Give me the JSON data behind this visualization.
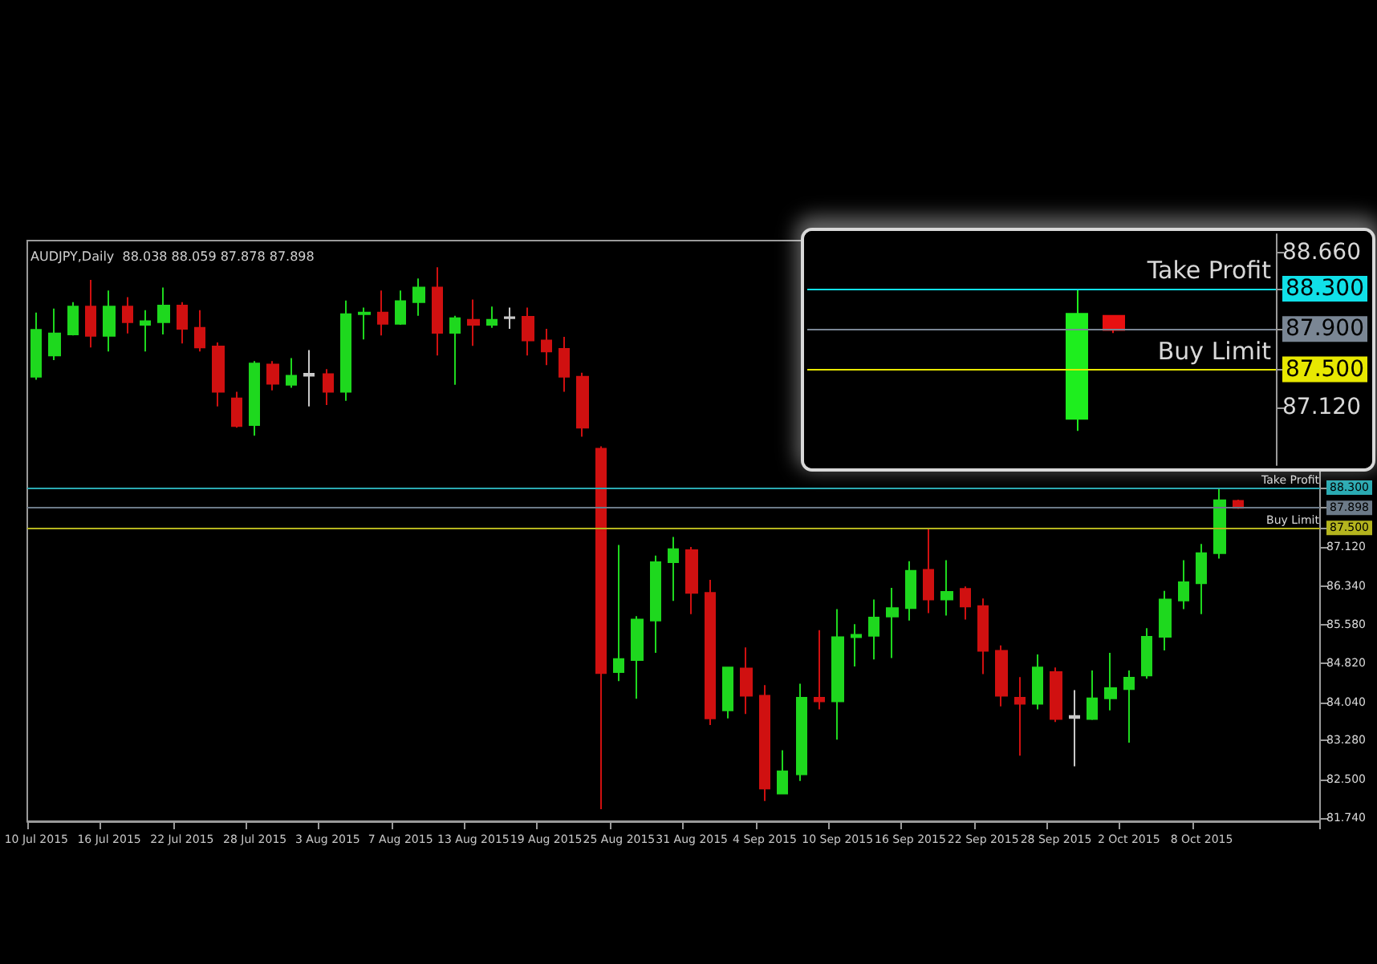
{
  "chart_data": [
    {
      "type": "candlestick",
      "title": "AUDJPY,Daily  88.038 88.059 87.878 87.898",
      "categories": [
        "10 Jul 2015",
        null,
        null,
        null,
        "16 Jul 2015",
        null,
        null,
        null,
        "22 Jul 2015",
        null,
        null,
        null,
        "28 Jul 2015",
        null,
        null,
        null,
        "3 Aug 2015",
        null,
        null,
        null,
        "7 Aug 2015",
        null,
        null,
        null,
        "13 Aug 2015",
        null,
        null,
        null,
        "19 Aug 2015",
        null,
        null,
        null,
        "25 Aug 2015",
        null,
        null,
        null,
        "31 Aug 2015",
        null,
        null,
        null,
        "4 Sep 2015",
        null,
        null,
        null,
        "10 Sep 2015",
        null,
        null,
        null,
        "16 Sep 2015",
        null,
        null,
        null,
        "22 Sep 2015",
        null,
        null,
        null,
        "28 Sep 2015",
        null,
        null,
        null,
        "2 Oct 2015",
        null,
        null,
        null,
        "8 Oct 2015",
        null,
        null,
        null,
        null,
        null,
        null
      ],
      "ohlc": [
        [
          90.5,
          91.77,
          90.44,
          91.43
        ],
        [
          90.92,
          91.85,
          90.83,
          91.36
        ],
        [
          91.34,
          91.98,
          91.32,
          91.89
        ],
        [
          91.89,
          92.42,
          91.08,
          91.31
        ],
        [
          91.31,
          92.21,
          91.0,
          91.89
        ],
        [
          91.89,
          92.08,
          91.36,
          91.58
        ],
        [
          91.53,
          91.82,
          91.0,
          91.6
        ],
        [
          91.58,
          92.27,
          91.34,
          91.91
        ],
        [
          91.91,
          91.98,
          91.16,
          91.45
        ],
        [
          91.47,
          91.82,
          91.0,
          91.08
        ],
        [
          91.1,
          91.18,
          89.91,
          90.2
        ],
        [
          90.07,
          90.2,
          89.49,
          89.52
        ],
        [
          89.54,
          90.81,
          89.33,
          90.76
        ],
        [
          90.74,
          90.81,
          90.23,
          90.36
        ],
        [
          90.34,
          90.87,
          90.28,
          90.52
        ],
        [
          90.52,
          91.03,
          89.91,
          90.56
        ],
        [
          90.55,
          90.65,
          89.94,
          90.2
        ],
        [
          90.2,
          92.01,
          90.02,
          91.74
        ],
        [
          91.74,
          91.87,
          91.24,
          91.77
        ],
        [
          91.77,
          92.21,
          91.32,
          91.55
        ],
        [
          91.55,
          92.21,
          91.53,
          92.0
        ],
        [
          91.98,
          92.45,
          91.71,
          92.27
        ],
        [
          92.27,
          92.67,
          90.92,
          91.37
        ],
        [
          91.37,
          91.71,
          90.34,
          91.66
        ],
        [
          91.63,
          92.03,
          91.11,
          91.53
        ],
        [
          91.53,
          91.89,
          91.47,
          91.63
        ],
        [
          91.66,
          91.87,
          91.45,
          91.68
        ],
        [
          91.69,
          91.87,
          90.92,
          91.22
        ],
        [
          91.22,
          91.45,
          90.73,
          91.0
        ],
        [
          91.05,
          91.29,
          90.2,
          90.5
        ],
        [
          90.5,
          90.58,
          89.31,
          89.49
        ],
        [
          89.07,
          89.12,
          81.92,
          84.62
        ],
        [
          84.64,
          87.16,
          84.46,
          84.9
        ],
        [
          84.88,
          85.75,
          84.11,
          85.68
        ],
        [
          85.66,
          86.95,
          85.02,
          86.82
        ],
        [
          86.82,
          87.32,
          86.05,
          87.08
        ],
        [
          87.06,
          87.12,
          85.79,
          86.21
        ],
        [
          86.21,
          86.47,
          83.59,
          83.72
        ],
        [
          83.88,
          84.73,
          83.72,
          84.73
        ],
        [
          84.71,
          85.13,
          83.81,
          84.17
        ],
        [
          84.17,
          84.38,
          82.08,
          82.33
        ],
        [
          82.23,
          83.09,
          82.23,
          82.67
        ],
        [
          82.61,
          84.41,
          82.48,
          84.13
        ],
        [
          84.13,
          85.47,
          83.9,
          84.06
        ],
        [
          84.06,
          85.89,
          83.3,
          85.33
        ],
        [
          85.33,
          85.59,
          84.75,
          85.38
        ],
        [
          85.36,
          86.08,
          84.89,
          85.72
        ],
        [
          85.74,
          86.31,
          84.92,
          85.91
        ],
        [
          85.91,
          86.84,
          85.66,
          86.65
        ],
        [
          86.67,
          87.5,
          85.81,
          86.08
        ],
        [
          86.08,
          86.86,
          85.76,
          86.23
        ],
        [
          86.29,
          86.34,
          85.68,
          85.94
        ],
        [
          85.95,
          86.1,
          84.6,
          85.06
        ],
        [
          85.06,
          85.17,
          83.96,
          84.17
        ],
        [
          84.13,
          84.54,
          82.98,
          84.01
        ],
        [
          84.01,
          84.99,
          83.9,
          84.73
        ],
        [
          84.64,
          84.73,
          83.65,
          83.71
        ],
        [
          83.77,
          84.28,
          82.77,
          83.73
        ],
        [
          83.71,
          84.67,
          83.69,
          84.12
        ],
        [
          84.12,
          85.02,
          83.88,
          84.32
        ],
        [
          84.3,
          84.67,
          83.24,
          84.53
        ],
        [
          84.57,
          85.51,
          84.51,
          85.34
        ],
        [
          85.34,
          86.25,
          85.07,
          86.08
        ],
        [
          86.06,
          86.86,
          85.89,
          86.42
        ],
        [
          86.4,
          87.18,
          85.79,
          87.0
        ],
        [
          87.0,
          88.3,
          86.89,
          88.05
        ],
        [
          88.038,
          88.059,
          87.878,
          87.898
        ],
        null,
        null,
        null,
        null
      ],
      "colors": [
        "#1ed81e",
        "#1ed81e",
        "#1ed81e",
        "#d01010",
        "#1ed81e",
        "#d01010",
        "#1ed81e",
        "#1ed81e",
        "#d01010",
        "#d01010",
        "#d01010",
        "#d01010",
        "#1ed81e",
        "#d01010",
        "#1ed81e",
        "#c8c8c8",
        "#d01010",
        "#1ed81e",
        "#1ed81e",
        "#d01010",
        "#1ed81e",
        "#1ed81e",
        "#d01010",
        "#1ed81e",
        "#d01010",
        "#1ed81e",
        "#c8c8c8",
        "#d01010",
        "#d01010",
        "#d01010",
        "#d01010",
        "#d01010",
        "#1ed81e",
        "#1ed81e",
        "#1ed81e",
        "#1ed81e",
        "#d01010",
        "#d01010",
        "#1ed81e",
        "#d01010",
        "#d01010",
        "#1ed81e",
        "#1ed81e",
        "#d01010",
        "#1ed81e",
        "#1ed81e",
        "#1ed81e",
        "#1ed81e",
        "#1ed81e",
        "#d01010",
        "#1ed81e",
        "#d01010",
        "#d01010",
        "#d01010",
        "#d01010",
        "#1ed81e",
        "#d01010",
        "#c8c8c8",
        "#1ed81e",
        "#1ed81e",
        "#1ed81e",
        "#1ed81e",
        "#1ed81e",
        "#1ed81e",
        "#1ed81e",
        "#1ed81e",
        "#d01010",
        null,
        null,
        null,
        null
      ],
      "ylim": [
        81.68,
        93.2
      ],
      "yticks": [
        {
          "value": 88.3,
          "label": "88.300"
        },
        {
          "value": 87.898,
          "label": "87.898"
        },
        {
          "value": 87.5,
          "label": "87.500"
        },
        {
          "value": 87.12,
          "label": "87.120"
        },
        {
          "value": 86.34,
          "label": "86.340"
        },
        {
          "value": 85.58,
          "label": "85.580"
        },
        {
          "value": 84.82,
          "label": "84.820"
        },
        {
          "value": 84.04,
          "label": "84.040"
        },
        {
          "value": 83.28,
          "label": "83.280"
        },
        {
          "value": 82.5,
          "label": "82.500"
        },
        {
          "value": 81.74,
          "label": "81.740"
        }
      ],
      "ref_lines": [
        {
          "axis": "y",
          "value": 88.3,
          "label": "Take Profit",
          "color": "#2aaab2"
        },
        {
          "axis": "y",
          "value": 87.898,
          "label": null,
          "color": "#6c7a88"
        },
        {
          "axis": "y",
          "value": 87.5,
          "label": "Buy Limit",
          "color": "#b4b41e"
        }
      ],
      "grid": false
    },
    {
      "type": "candlestick",
      "categories": [
        null,
        null,
        null,
        null,
        null,
        null,
        null,
        null,
        null,
        null,
        null,
        null,
        null
      ],
      "ohlc": [
        null,
        null,
        null,
        null,
        null,
        null,
        null,
        [
          87.01,
          88.3,
          86.89,
          88.05
        ],
        [
          88.03,
          88.03,
          87.86,
          87.89
        ],
        null,
        null,
        null,
        null
      ],
      "colors": [
        null,
        null,
        null,
        null,
        null,
        null,
        null,
        "#1eee1e",
        "#e81010",
        null,
        null,
        null,
        null
      ],
      "ylim": [
        86.55,
        88.84
      ],
      "yticks": [
        {
          "value": 88.66,
          "label": "88.660"
        },
        {
          "value": 88.3,
          "label": "88.300"
        },
        {
          "value": 87.9,
          "label": "87.900"
        },
        {
          "value": 87.5,
          "label": "87.500"
        },
        {
          "value": 87.12,
          "label": "87.120"
        }
      ],
      "tick_labels": "y",
      "ref_lines": [
        {
          "axis": "y",
          "value": 88.3,
          "label": "Take Profit",
          "color": "#10e0e8"
        },
        {
          "axis": "y",
          "value": 87.9,
          "label": null,
          "color": "#7a8694"
        },
        {
          "axis": "y",
          "value": 87.5,
          "label": "Buy Limit",
          "color": "#e8e800"
        }
      ],
      "grid": false
    }
  ]
}
